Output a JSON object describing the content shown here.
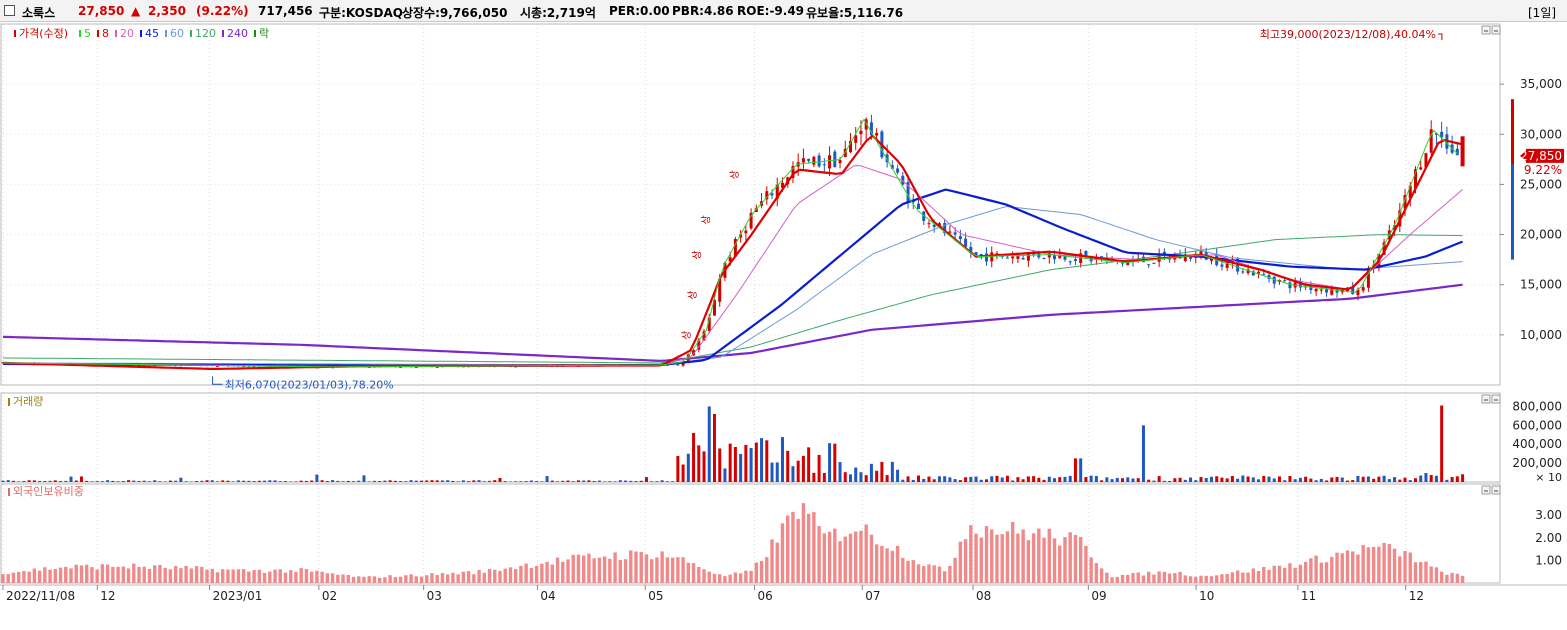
{
  "header": {
    "name": "소룩스",
    "price": "27,850",
    "change_arrow": "▲",
    "change": "2,350",
    "change_pct": "(9.22%)",
    "volume": "717,456",
    "market": "구분:KOSDAQ",
    "shares": "상장수:9,766,050",
    "mcap": "시총:2,719억",
    "per": "PER:0.00",
    "pbr": "PBR:4.86",
    "roe": "ROE:-9.49",
    "float": "유보율:5,116.76",
    "period": "[1일]"
  },
  "colors": {
    "up": "#d40000",
    "down": "#1f57c3",
    "ma5": "#2bd42b",
    "ma8": "#e00000",
    "ma20": "#d660c0",
    "ma45": "#0a1ed0",
    "ma60": "#6a9ad8",
    "ma120": "#3fa86a",
    "ma240": "#7a28c8",
    "volume_label": "#a08010",
    "foreign_label": "#e06a6a",
    "foreign_bar": "#f08a8a"
  },
  "chart_data": [
    {
      "type": "line",
      "title": "가격(수정)",
      "legend": [
        {
          "label": "가격(수정)",
          "key": "price"
        },
        {
          "label": "5",
          "key": "ma5"
        },
        {
          "label": "8",
          "key": "ma8"
        },
        {
          "label": "20",
          "key": "ma20"
        },
        {
          "label": "45",
          "key": "ma45"
        },
        {
          "label": "60",
          "key": "ma60"
        },
        {
          "label": "120",
          "key": "ma120"
        },
        {
          "label": "240",
          "key": "ma240"
        },
        {
          "label": "락",
          "key": "lock"
        }
      ],
      "y_ticks": [
        "35,000",
        "30,000",
        "25,000",
        "20,000",
        "15,000",
        "10,000"
      ],
      "y_tick_values": [
        35000,
        30000,
        25000,
        20000,
        15000,
        10000
      ],
      "ylim": [
        5000,
        40000
      ],
      "current_price_label": "27,850",
      "current_pct_label": "9.22%",
      "annotations": {
        "high": "최고39,000(2023/12/08),40.04%",
        "low": "최저6,070(2023/01/03),78.20%",
        "limit_up": "상"
      },
      "series": [
        {
          "name": "5",
          "key": "ma5",
          "points": [
            [
              0.0,
              7200
            ],
            [
              0.22,
              6800
            ],
            [
              0.44,
              7000
            ],
            [
              0.455,
              7300
            ],
            [
              0.47,
              10500
            ],
            [
              0.48,
              16500
            ],
            [
              0.5,
              22000
            ],
            [
              0.53,
              27000
            ],
            [
              0.56,
              27500
            ],
            [
              0.575,
              31500
            ],
            [
              0.61,
              22500
            ],
            [
              0.65,
              17800
            ],
            [
              0.7,
              18000
            ],
            [
              0.75,
              17200
            ],
            [
              0.8,
              18000
            ],
            [
              0.86,
              15000
            ],
            [
              0.905,
              14200
            ],
            [
              0.93,
              21000
            ],
            [
              0.955,
              30500
            ],
            [
              0.972,
              28000
            ]
          ]
        },
        {
          "name": "8",
          "key": "ma8",
          "points": [
            [
              0.0,
              7200
            ],
            [
              0.14,
              6600
            ],
            [
              0.25,
              6900
            ],
            [
              0.44,
              6950
            ],
            [
              0.46,
              8500
            ],
            [
              0.48,
              16000
            ],
            [
              0.5,
              20000
            ],
            [
              0.53,
              26500
            ],
            [
              0.56,
              26000
            ],
            [
              0.58,
              30000
            ],
            [
              0.6,
              27000
            ],
            [
              0.62,
              21500
            ],
            [
              0.65,
              17800
            ],
            [
              0.7,
              18300
            ],
            [
              0.75,
              17300
            ],
            [
              0.8,
              18000
            ],
            [
              0.84,
              16500
            ],
            [
              0.87,
              15000
            ],
            [
              0.9,
              14500
            ],
            [
              0.92,
              17500
            ],
            [
              0.96,
              29500
            ],
            [
              0.975,
              29000
            ]
          ]
        },
        {
          "name": "20",
          "key": "ma20",
          "points": [
            [
              0.0,
              7200
            ],
            [
              0.25,
              6800
            ],
            [
              0.44,
              7000
            ],
            [
              0.46,
              7800
            ],
            [
              0.49,
              14000
            ],
            [
              0.53,
              23000
            ],
            [
              0.57,
              27000
            ],
            [
              0.6,
              25500
            ],
            [
              0.64,
              20000
            ],
            [
              0.7,
              18000
            ],
            [
              0.76,
              17500
            ],
            [
              0.81,
              18000
            ],
            [
              0.86,
              15500
            ],
            [
              0.9,
              14500
            ],
            [
              0.94,
              20000
            ],
            [
              0.975,
              24500
            ]
          ]
        },
        {
          "name": "45",
          "key": "ma45",
          "points": [
            [
              0.0,
              7100
            ],
            [
              0.3,
              6900
            ],
            [
              0.44,
              7000
            ],
            [
              0.47,
              7500
            ],
            [
              0.52,
              13000
            ],
            [
              0.56,
              18000
            ],
            [
              0.6,
              23000
            ],
            [
              0.63,
              24500
            ],
            [
              0.67,
              23000
            ],
            [
              0.71,
              20500
            ],
            [
              0.75,
              18200
            ],
            [
              0.8,
              17800
            ],
            [
              0.86,
              16800
            ],
            [
              0.91,
              16500
            ],
            [
              0.95,
              17800
            ],
            [
              0.975,
              19300
            ]
          ]
        },
        {
          "name": "60",
          "key": "ma60",
          "points": [
            [
              0.0,
              7200
            ],
            [
              0.44,
              7000
            ],
            [
              0.48,
              7800
            ],
            [
              0.53,
              12500
            ],
            [
              0.58,
              18000
            ],
            [
              0.63,
              21000
            ],
            [
              0.67,
              22800
            ],
            [
              0.72,
              22000
            ],
            [
              0.77,
              19500
            ],
            [
              0.82,
              17700
            ],
            [
              0.9,
              16500
            ],
            [
              0.975,
              17300
            ]
          ]
        },
        {
          "name": "120",
          "key": "ma120",
          "points": [
            [
              0.0,
              7700
            ],
            [
              0.44,
              7200
            ],
            [
              0.5,
              8800
            ],
            [
              0.56,
              11500
            ],
            [
              0.62,
              14000
            ],
            [
              0.7,
              16500
            ],
            [
              0.78,
              18000
            ],
            [
              0.85,
              19500
            ],
            [
              0.92,
              20000
            ],
            [
              0.975,
              19900
            ]
          ]
        },
        {
          "name": "240",
          "key": "ma240",
          "points": [
            [
              0.0,
              9800
            ],
            [
              0.2,
              9000
            ],
            [
              0.44,
              7400
            ],
            [
              0.5,
              8200
            ],
            [
              0.58,
              10500
            ],
            [
              0.7,
              12000
            ],
            [
              0.8,
              12800
            ],
            [
              0.9,
              13600
            ],
            [
              0.975,
              15000
            ]
          ]
        }
      ]
    },
    {
      "type": "bar",
      "title": "거래량",
      "y_ticks": [
        "800,000",
        "600,000",
        "400,000",
        "200,000"
      ],
      "y_tick_values": [
        800000,
        600000,
        400000,
        200000
      ],
      "unit": "× 10",
      "ylim": [
        0,
        900000
      ]
    },
    {
      "type": "bar",
      "title": "외국인보유비중",
      "y_ticks": [
        "3.00",
        "2.00",
        "1.00"
      ],
      "y_tick_values": [
        3,
        2,
        1
      ],
      "ylim": [
        0,
        4.2
      ]
    }
  ],
  "x_axis": {
    "labels": [
      "2022/11/08",
      "12",
      "2023/01",
      "02",
      "03",
      "04",
      "05",
      "06",
      "07",
      "08",
      "09",
      "10",
      "11",
      "12"
    ],
    "positions": [
      0.0,
      0.063,
      0.138,
      0.211,
      0.281,
      0.357,
      0.429,
      0.502,
      0.574,
      0.648,
      0.725,
      0.797,
      0.865,
      0.937
    ]
  }
}
